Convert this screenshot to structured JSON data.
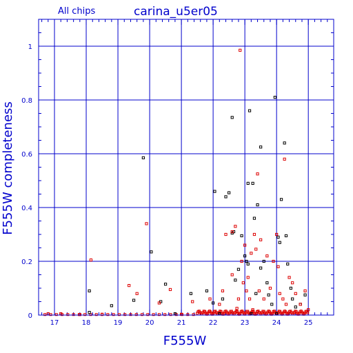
{
  "header": {
    "left_label": "All chips",
    "title": "carina_u5er05"
  },
  "colors": {
    "axis": "#0000cc",
    "grid": "#0000cc",
    "series_black": "#000000",
    "series_red": "#dd0000"
  },
  "chart_data": {
    "type": "scatter",
    "title": "carina_u5er05",
    "xlabel": "F555W",
    "ylabel": "F555W completeness",
    "xlim": [
      16.5,
      25.8
    ],
    "ylim": [
      0,
      1.1
    ],
    "xticks": [
      17,
      18,
      19,
      20,
      21,
      22,
      23,
      24,
      25
    ],
    "yticks": [
      0,
      0.2,
      0.4,
      0.6,
      0.8,
      1
    ],
    "ytick_labels": [
      "0",
      "0.2",
      "0.4",
      "0.6",
      "0.8",
      "1"
    ],
    "grid": true,
    "series": [
      {
        "color": "#000000",
        "points": [
          [
            18.1,
            0.09
          ],
          [
            18.1,
            0.01
          ],
          [
            18.8,
            0.035
          ],
          [
            19.5,
            0.055
          ],
          [
            19.8,
            0.585
          ],
          [
            20.05,
            0.235
          ],
          [
            20.35,
            0.05
          ],
          [
            20.5,
            0.115
          ],
          [
            20.8,
            0.005
          ],
          [
            21.3,
            0.08
          ],
          [
            21.8,
            0.09
          ],
          [
            22.0,
            0.045
          ],
          [
            22.05,
            0.46
          ],
          [
            22.3,
            0.06
          ],
          [
            22.4,
            0.44
          ],
          [
            22.5,
            0.455
          ],
          [
            22.6,
            0.305
          ],
          [
            22.6,
            0.735
          ],
          [
            22.65,
            0.31
          ],
          [
            22.7,
            0.13
          ],
          [
            22.8,
            0.17
          ],
          [
            22.9,
            0.295
          ],
          [
            23.0,
            0.22
          ],
          [
            23.05,
            0.2
          ],
          [
            23.1,
            0.19
          ],
          [
            23.1,
            0.49
          ],
          [
            23.15,
            0.76
          ],
          [
            23.25,
            0.49
          ],
          [
            23.3,
            0.36
          ],
          [
            23.35,
            0.08
          ],
          [
            23.4,
            0.41
          ],
          [
            23.5,
            0.175
          ],
          [
            23.5,
            0.625
          ],
          [
            23.6,
            0.2
          ],
          [
            23.7,
            0.12
          ],
          [
            23.75,
            0.075
          ],
          [
            23.85,
            0.04
          ],
          [
            23.95,
            0.81
          ],
          [
            24.05,
            0.29
          ],
          [
            24.1,
            0.27
          ],
          [
            24.15,
            0.43
          ],
          [
            24.25,
            0.64
          ],
          [
            24.3,
            0.295
          ],
          [
            24.35,
            0.19
          ],
          [
            24.45,
            0.1
          ],
          [
            24.5,
            0.06
          ],
          [
            24.6,
            0.03
          ],
          [
            24.75,
            0.04
          ],
          [
            24.9,
            0.075
          ],
          [
            22.2,
            0.005
          ],
          [
            23.2,
            0.005
          ],
          [
            24.0,
            0.005
          ]
        ]
      },
      {
        "color": "#dd0000",
        "points": [
          [
            16.8,
            0.005
          ],
          [
            17.2,
            0.005
          ],
          [
            17.8,
            0.002
          ],
          [
            18.15,
            0.205
          ],
          [
            18.5,
            0.003
          ],
          [
            19.35,
            0.11
          ],
          [
            19.6,
            0.08
          ],
          [
            19.9,
            0.34
          ],
          [
            20.3,
            0.045
          ],
          [
            20.65,
            0.095
          ],
          [
            21.0,
            0.003
          ],
          [
            21.35,
            0.05
          ],
          [
            21.9,
            0.06
          ],
          [
            22.2,
            0.04
          ],
          [
            22.3,
            0.09
          ],
          [
            22.4,
            0.3
          ],
          [
            22.6,
            0.15
          ],
          [
            22.6,
            0.31
          ],
          [
            22.7,
            0.33
          ],
          [
            22.8,
            0.06
          ],
          [
            22.85,
            0.985
          ],
          [
            22.9,
            0.2
          ],
          [
            22.95,
            0.12
          ],
          [
            23.0,
            0.26
          ],
          [
            23.05,
            0.09
          ],
          [
            23.1,
            0.14
          ],
          [
            23.15,
            0.06
          ],
          [
            23.2,
            0.23
          ],
          [
            23.3,
            0.3
          ],
          [
            23.35,
            0.245
          ],
          [
            23.4,
            0.525
          ],
          [
            23.45,
            0.09
          ],
          [
            23.5,
            0.28
          ],
          [
            23.6,
            0.06
          ],
          [
            23.7,
            0.22
          ],
          [
            23.8,
            0.1
          ],
          [
            23.9,
            0.2
          ],
          [
            24.0,
            0.3
          ],
          [
            24.05,
            0.18
          ],
          [
            24.1,
            0.08
          ],
          [
            24.2,
            0.06
          ],
          [
            24.25,
            0.58
          ],
          [
            24.3,
            0.04
          ],
          [
            24.4,
            0.14
          ],
          [
            24.5,
            0.12
          ],
          [
            24.6,
            0.08
          ],
          [
            24.75,
            0.04
          ],
          [
            24.9,
            0.09
          ],
          [
            25.0,
            0.02
          ],
          [
            23.25,
            0.02
          ],
          [
            22.75,
            0.025
          ]
        ]
      }
    ],
    "floor_band": {
      "color": "#dd0000",
      "x_range": [
        21.5,
        25.0
      ],
      "y": 0.003
    }
  }
}
